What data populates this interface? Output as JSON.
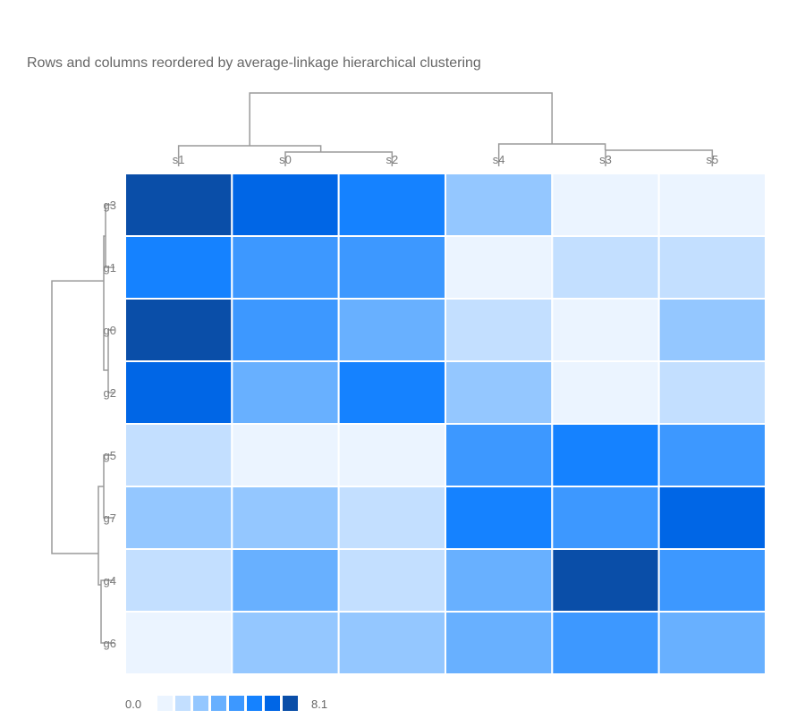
{
  "chart_data": {
    "type": "heatmap",
    "title": "Rows and columns reordered by average-linkage hierarchical clustering",
    "columns": [
      "s1",
      "s0",
      "s2",
      "s4",
      "s3",
      "s5"
    ],
    "rows": [
      "g3",
      "g1",
      "g0",
      "g2",
      "g5",
      "g7",
      "g4",
      "g6"
    ],
    "values": [
      [
        7.6,
        6.8,
        5.8,
        2.4,
        0.4,
        0.4
      ],
      [
        5.1,
        4.8,
        4.2,
        1.0,
        1.2,
        1.6
      ],
      [
        7.7,
        4.3,
        3.9,
        1.9,
        0.3,
        2.4
      ],
      [
        6.8,
        4.0,
        5.9,
        2.3,
        0.6,
        1.9
      ],
      [
        1.3,
        0.7,
        1.0,
        4.1,
        6.0,
        5.0
      ],
      [
        2.7,
        2.5,
        1.1,
        5.1,
        4.6,
        6.8
      ],
      [
        1.1,
        3.1,
        1.6,
        3.4,
        8.1,
        4.5
      ],
      [
        0.3,
        2.2,
        2.9,
        3.5,
        4.2,
        3.9
      ]
    ],
    "colorscale_range": [
      0.0,
      8.1
    ],
    "colorscale": [
      "#ebf4ff",
      "#c3dfff",
      "#94c7ff",
      "#68b0ff",
      "#3d98ff",
      "#1582ff",
      "#0066e6",
      "#0a4ea8"
    ],
    "legend": {
      "min_label": "0.0",
      "max_label": "8.1",
      "placement": "bottom-left"
    },
    "col_dendrogram_groups": [
      [
        "s1",
        [
          "s0",
          "s2"
        ]
      ],
      [
        "s4",
        [
          "s3",
          "s5"
        ]
      ]
    ],
    "row_dendrogram_groups": [
      [
        [
          "g3",
          "g1"
        ],
        [
          "g0",
          "g2"
        ]
      ],
      [
        [
          "g5",
          "g7"
        ],
        [
          "g4",
          "g6"
        ]
      ]
    ]
  },
  "line_color": "#9a9a9a"
}
